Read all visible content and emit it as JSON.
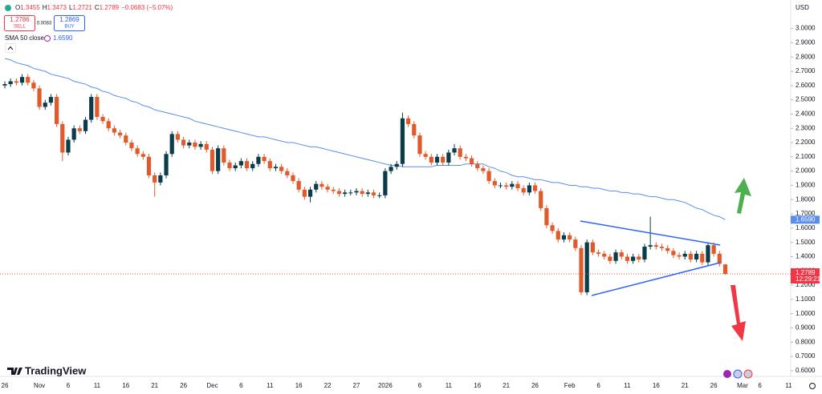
{
  "chart_data": {
    "type": "candlestick",
    "currency": "USD",
    "header": {
      "ohlc_labels": [
        "O",
        "H",
        "L",
        "C"
      ],
      "change": "−0.0683 (−5.07%)"
    },
    "trade": {
      "sell_price": "1.2786",
      "sell": "SELL",
      "spread": "0.0083",
      "buy_price": "1.2869",
      "buy": "BUY"
    },
    "indicator": {
      "name": "SMA 50 close",
      "value": "1.6590"
    },
    "last_price_label": "1.2789",
    "countdown": "12:29:21",
    "brand": "TradingView",
    "up_color": "#0b3c49",
    "down_color": "#e05a2b",
    "grid": false,
    "ylim": [
      0.56,
      3.2
    ],
    "yticks": [
      {
        "value": 0.6,
        "label": "0.6000"
      },
      {
        "value": 0.7,
        "label": "0.7000"
      },
      {
        "value": 0.8,
        "label": "0.8000"
      },
      {
        "value": 0.9,
        "label": "0.9000"
      },
      {
        "value": 1.0,
        "label": "1.0000"
      },
      {
        "value": 1.1,
        "label": "1.1000"
      },
      {
        "value": 1.2,
        "label": "1.2000"
      },
      {
        "value": 1.3,
        "label": "1.3000"
      },
      {
        "value": 1.4,
        "label": "1.4000"
      },
      {
        "value": 1.5,
        "label": "1.5000"
      },
      {
        "value": 1.6,
        "label": "1.6000"
      },
      {
        "value": 1.7,
        "label": "1.7000"
      },
      {
        "value": 1.8,
        "label": "1.8000"
      },
      {
        "value": 1.9,
        "label": "1.9000"
      },
      {
        "value": 2.0,
        "label": "2.0000"
      },
      {
        "value": 2.1,
        "label": "2.1000"
      },
      {
        "value": 2.2,
        "label": "2.2000"
      },
      {
        "value": 2.3,
        "label": "2.3000"
      },
      {
        "value": 2.4,
        "label": "2.4000"
      },
      {
        "value": 2.5,
        "label": "2.5000"
      },
      {
        "value": 2.6,
        "label": "2.6000"
      },
      {
        "value": 2.7,
        "label": "2.7000"
      },
      {
        "value": 2.8,
        "label": "2.8000"
      },
      {
        "value": 2.9,
        "label": "2.9000"
      },
      {
        "value": 3.0,
        "label": "3.0000"
      }
    ],
    "categories": [
      "26",
      null,
      null,
      null,
      null,
      null,
      "Nov",
      null,
      null,
      null,
      null,
      "6",
      null,
      null,
      null,
      null,
      "11",
      null,
      null,
      null,
      null,
      "16",
      null,
      null,
      null,
      null,
      "21",
      null,
      null,
      null,
      null,
      "26",
      null,
      null,
      null,
      null,
      "Dec",
      null,
      null,
      null,
      null,
      "6",
      null,
      null,
      null,
      null,
      "11",
      null,
      null,
      null,
      null,
      "16",
      null,
      null,
      null,
      null,
      "22",
      null,
      null,
      null,
      null,
      "27",
      null,
      null,
      null,
      null,
      "2026",
      null,
      null,
      null,
      null,
      null,
      "6",
      null,
      null,
      null,
      null,
      "11",
      null,
      null,
      null,
      null,
      "16",
      null,
      null,
      null,
      null,
      "21",
      null,
      null,
      null,
      null,
      "26",
      null,
      null,
      null,
      null,
      null,
      "Feb",
      null,
      null,
      null,
      null,
      "6",
      null,
      null,
      null,
      null,
      "11",
      null,
      null,
      null,
      null,
      "16",
      null,
      null,
      null,
      null,
      "21",
      null,
      null,
      null,
      null,
      "26",
      null,
      null,
      null,
      null,
      "Mar",
      null,
      null,
      "6",
      null,
      null,
      null,
      null,
      "11"
    ],
    "open": [
      2.6,
      2.61,
      2.63,
      2.62,
      2.66,
      2.62,
      2.58,
      2.45,
      2.48,
      2.52,
      2.33,
      2.13,
      2.22,
      2.3,
      2.28,
      2.36,
      2.52,
      2.38,
      2.35,
      2.3,
      2.27,
      2.25,
      2.2,
      2.16,
      2.12,
      2.1,
      1.97,
      1.92,
      1.97,
      2.12,
      2.26,
      2.22,
      2.18,
      2.2,
      2.17,
      2.19,
      2.15,
      2.0,
      2.16,
      2.06,
      2.02,
      2.04,
      2.07,
      2.02,
      2.05,
      2.1,
      2.07,
      2.02,
      2.03,
      2.0,
      1.97,
      1.93,
      1.87,
      1.82,
      1.87,
      1.91,
      1.89,
      1.87,
      1.86,
      1.84,
      1.85,
      1.85,
      1.86,
      1.84,
      1.85,
      1.83,
      1.83,
      2.0,
      2.03,
      2.05,
      2.37,
      2.33,
      2.25,
      2.12,
      2.1,
      2.06,
      2.1,
      2.06,
      2.13,
      2.16,
      2.1,
      2.09,
      2.05,
      2.02,
      2.0,
      1.93,
      1.9,
      1.9,
      1.89,
      1.91,
      1.88,
      1.85,
      1.9,
      1.86,
      1.74,
      1.62,
      1.58,
      1.52,
      1.55,
      1.52,
      1.46,
      1.15,
      1.5,
      1.43,
      1.42,
      1.4,
      1.37,
      1.43,
      1.4,
      1.37,
      1.4,
      1.38,
      1.47,
      1.48,
      1.47,
      1.46,
      1.44,
      1.41,
      1.4,
      1.42,
      1.38,
      1.42,
      1.36,
      1.48,
      1.42,
      1.3455,
      null,
      null,
      null,
      null,
      null,
      null,
      null,
      null,
      null,
      null,
      null
    ],
    "high": [
      2.63,
      2.65,
      2.65,
      2.68,
      2.68,
      2.64,
      2.6,
      2.5,
      2.54,
      2.54,
      2.35,
      2.24,
      2.32,
      2.32,
      2.38,
      2.54,
      2.54,
      2.4,
      2.37,
      2.32,
      2.29,
      2.27,
      2.22,
      2.18,
      2.14,
      2.12,
      1.99,
      1.99,
      2.14,
      2.28,
      2.28,
      2.24,
      2.22,
      2.22,
      2.21,
      2.21,
      2.17,
      2.18,
      2.18,
      2.08,
      2.06,
      2.09,
      2.09,
      2.07,
      2.12,
      2.12,
      2.09,
      2.05,
      2.05,
      2.02,
      1.99,
      1.95,
      1.89,
      1.89,
      1.93,
      1.93,
      1.91,
      1.89,
      1.88,
      1.87,
      1.87,
      1.88,
      1.88,
      1.87,
      1.87,
      1.85,
      2.02,
      2.05,
      2.07,
      2.41,
      2.39,
      2.35,
      2.27,
      2.14,
      2.12,
      2.12,
      2.12,
      2.15,
      2.19,
      2.18,
      2.12,
      2.11,
      2.07,
      2.04,
      2.02,
      1.95,
      1.92,
      1.92,
      1.93,
      1.93,
      1.9,
      1.92,
      1.92,
      1.88,
      1.76,
      1.64,
      1.6,
      1.57,
      1.57,
      1.54,
      1.48,
      1.52,
      1.52,
      1.45,
      1.44,
      1.42,
      1.45,
      1.45,
      1.42,
      1.42,
      1.42,
      1.49,
      1.68,
      1.5,
      1.49,
      1.48,
      1.46,
      1.43,
      1.44,
      1.44,
      1.44,
      1.44,
      1.5,
      1.5,
      1.44,
      1.3473,
      null,
      null,
      null,
      null,
      null,
      null,
      null,
      null,
      null,
      null,
      null
    ],
    "low": [
      2.58,
      2.59,
      2.6,
      2.6,
      2.6,
      2.56,
      2.43,
      2.43,
      2.46,
      2.31,
      2.07,
      2.11,
      2.2,
      2.26,
      2.26,
      2.34,
      2.36,
      2.33,
      2.28,
      2.25,
      2.23,
      2.18,
      2.14,
      2.1,
      2.08,
      1.95,
      1.82,
      1.9,
      1.95,
      2.1,
      2.2,
      2.16,
      2.16,
      2.15,
      2.15,
      2.13,
      1.98,
      1.98,
      2.04,
      2.0,
      2.0,
      2.02,
      2.0,
      2.0,
      2.03,
      2.05,
      2.0,
      2.0,
      1.98,
      1.95,
      1.91,
      1.85,
      1.8,
      1.78,
      1.85,
      1.87,
      1.85,
      1.84,
      1.82,
      1.82,
      1.83,
      1.83,
      1.82,
      1.82,
      1.81,
      1.81,
      1.81,
      1.98,
      2.01,
      2.03,
      2.31,
      2.23,
      2.1,
      2.08,
      2.04,
      2.04,
      2.04,
      2.04,
      2.11,
      2.08,
      2.07,
      2.03,
      2.0,
      1.98,
      1.91,
      1.88,
      1.88,
      1.87,
      1.87,
      1.86,
      1.83,
      1.83,
      1.84,
      1.72,
      1.6,
      1.56,
      1.5,
      1.5,
      1.5,
      1.44,
      1.13,
      1.13,
      1.41,
      1.4,
      1.38,
      1.35,
      1.35,
      1.38,
      1.35,
      1.35,
      1.36,
      1.36,
      1.45,
      1.45,
      1.44,
      1.42,
      1.39,
      1.38,
      1.38,
      1.36,
      1.36,
      1.34,
      1.34,
      1.4,
      1.33,
      1.2721,
      null,
      null,
      null,
      null,
      null,
      null,
      null,
      null,
      null,
      null,
      null
    ],
    "close": [
      2.61,
      2.63,
      2.62,
      2.66,
      2.62,
      2.58,
      2.45,
      2.48,
      2.52,
      2.33,
      2.13,
      2.22,
      2.3,
      2.28,
      2.36,
      2.52,
      2.38,
      2.35,
      2.3,
      2.27,
      2.25,
      2.2,
      2.16,
      2.12,
      2.1,
      1.97,
      1.92,
      1.97,
      2.12,
      2.26,
      2.22,
      2.18,
      2.2,
      2.17,
      2.19,
      2.15,
      2.0,
      2.16,
      2.06,
      2.02,
      2.04,
      2.07,
      2.02,
      2.05,
      2.1,
      2.07,
      2.02,
      2.03,
      2.0,
      1.97,
      1.93,
      1.87,
      1.82,
      1.87,
      1.91,
      1.89,
      1.87,
      1.86,
      1.84,
      1.85,
      1.85,
      1.86,
      1.84,
      1.85,
      1.83,
      1.83,
      2.0,
      2.03,
      2.05,
      2.37,
      2.33,
      2.25,
      2.12,
      2.1,
      2.06,
      2.1,
      2.06,
      2.13,
      2.16,
      2.1,
      2.09,
      2.05,
      2.02,
      2.0,
      1.93,
      1.9,
      1.9,
      1.89,
      1.91,
      1.88,
      1.85,
      1.9,
      1.86,
      1.74,
      1.62,
      1.58,
      1.52,
      1.55,
      1.52,
      1.46,
      1.15,
      1.5,
      1.43,
      1.42,
      1.4,
      1.37,
      1.43,
      1.4,
      1.37,
      1.4,
      1.38,
      1.47,
      1.48,
      1.47,
      1.46,
      1.44,
      1.41,
      1.4,
      1.42,
      1.38,
      1.42,
      1.36,
      1.48,
      1.42,
      1.35,
      1.2789,
      null,
      null,
      null,
      null,
      null,
      null,
      null,
      null,
      null,
      null,
      null
    ],
    "series": [
      {
        "name": "SMA 50 close",
        "color": "#5b8def",
        "values": [
          2.79,
          2.78,
          2.76,
          2.75,
          2.74,
          2.72,
          2.71,
          2.7,
          2.68,
          2.67,
          2.66,
          2.65,
          2.63,
          2.62,
          2.61,
          2.59,
          2.58,
          2.56,
          2.55,
          2.53,
          2.52,
          2.51,
          2.49,
          2.48,
          2.46,
          2.45,
          2.43,
          2.42,
          2.41,
          2.4,
          2.39,
          2.38,
          2.37,
          2.35,
          2.34,
          2.33,
          2.32,
          2.31,
          2.3,
          2.29,
          2.28,
          2.27,
          2.26,
          2.25,
          2.24,
          2.24,
          2.23,
          2.22,
          2.21,
          2.2,
          2.2,
          2.19,
          2.18,
          2.17,
          2.17,
          2.16,
          2.15,
          2.14,
          2.13,
          2.12,
          2.11,
          2.1,
          2.09,
          2.08,
          2.07,
          2.06,
          2.05,
          2.04,
          2.04,
          2.03,
          2.03,
          2.03,
          2.03,
          2.03,
          2.03,
          2.04,
          2.04,
          2.04,
          2.04,
          2.04,
          2.05,
          2.05,
          2.05,
          2.05,
          2.03,
          2.02,
          2.0,
          1.99,
          1.97,
          1.96,
          1.96,
          1.95,
          1.94,
          1.94,
          1.93,
          1.92,
          1.92,
          1.91,
          1.9,
          1.9,
          1.89,
          1.89,
          1.88,
          1.88,
          1.87,
          1.86,
          1.86,
          1.85,
          1.85,
          1.84,
          1.84,
          1.83,
          1.82,
          1.82,
          1.81,
          1.8,
          1.8,
          1.79,
          1.78,
          1.76,
          1.74,
          1.73,
          1.71,
          1.69,
          1.68,
          1.659,
          null,
          null,
          null,
          null,
          null,
          null,
          null,
          null,
          null,
          null,
          null
        ]
      }
    ]
  }
}
